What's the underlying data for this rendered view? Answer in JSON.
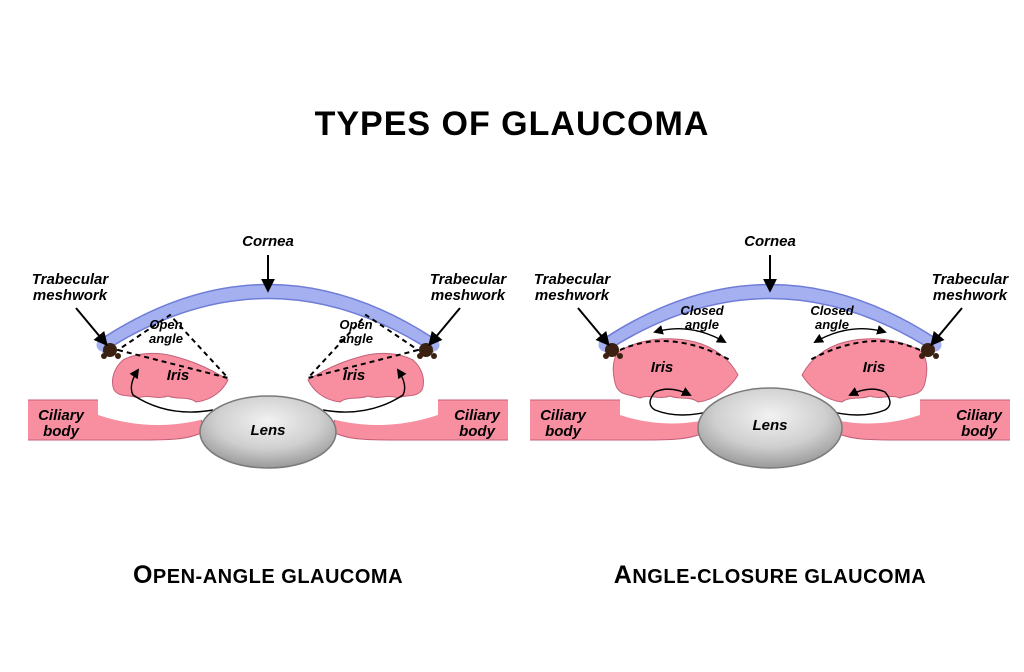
{
  "title": "TYPES OF GLAUCOMA",
  "title_fontsize": 34,
  "title_color": "#000000",
  "background": "#ffffff",
  "colors": {
    "tissue": "#f78fa1",
    "tissue_stroke": "#c46078",
    "iris": "#f78fa1",
    "cornea_fill": "#a4b0f0",
    "cornea_stroke": "#6f7dd8",
    "lens_light": "#e4e4e4",
    "lens_core": "#9b9b9b",
    "lens_stroke": "#7a7a7a",
    "meshwork": "#3b2112",
    "label_text": "#000000",
    "dashed": "#000000"
  },
  "label_fontsize": 15,
  "angle_label_fontsize": 13,
  "subtitle_fontsize": 20,
  "panels": [
    {
      "key": "open",
      "subtitle_big": "O",
      "subtitle_rest": "PEN-ANGLE GLAUCOMA",
      "angle_text": "Open\nangle",
      "labels": {
        "cornea": "Cornea",
        "trabecular": "Trabecular\nmeshwork",
        "iris": "Iris",
        "lens": "Lens",
        "ciliary": "Ciliary\nbody"
      }
    },
    {
      "key": "closed",
      "subtitle_big": "A",
      "subtitle_rest": "NGLE-CLOSURE GLAUCOMA",
      "angle_text": "Closed\nangle",
      "labels": {
        "cornea": "Cornea",
        "trabecular": "Trabecular\nmeshwork",
        "iris": "Iris",
        "lens": "Lens",
        "ciliary": "Ciliary\nbody"
      }
    }
  ]
}
